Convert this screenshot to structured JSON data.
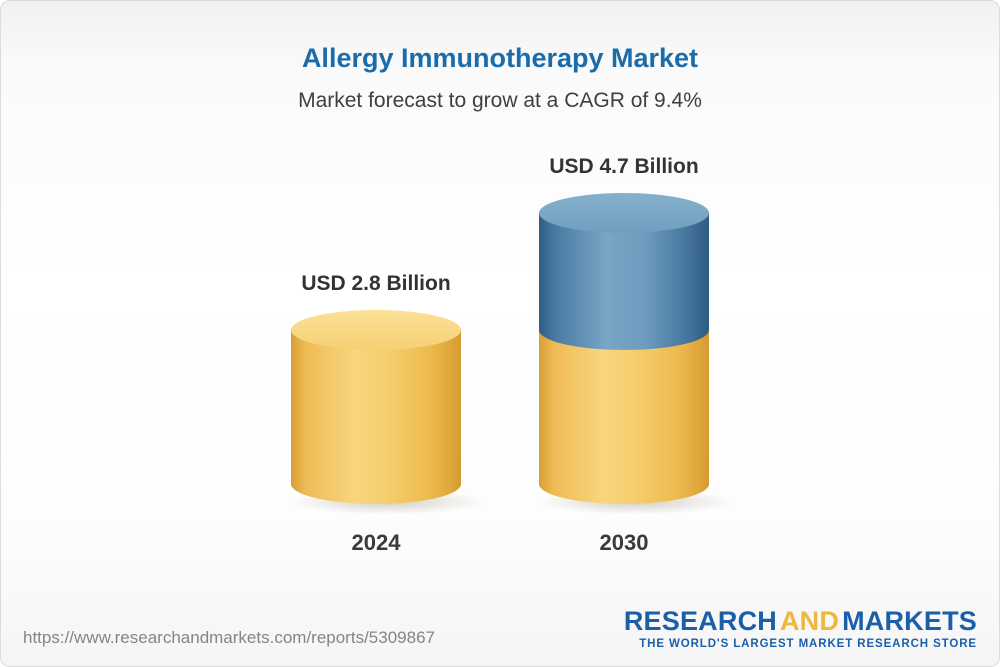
{
  "chart_data": {
    "type": "bar",
    "title": "Allergy Immunotherapy Market",
    "subtitle": "Market forecast to grow at a CAGR of 9.4%",
    "categories": [
      "2024",
      "2030"
    ],
    "values": [
      2.8,
      4.7
    ],
    "value_labels": [
      "USD 2.8 Billion",
      "USD 4.7 Billion"
    ],
    "unit": "USD Billion",
    "cagr_percent": 9.4,
    "legend": "none",
    "axes": "hidden",
    "colors": {
      "base_segment": "#F2C75C",
      "growth_segment": "#4E81A8",
      "title": "#1B6CAB"
    }
  },
  "footer": {
    "url": "https://www.researchandmarkets.com/reports/5309867",
    "logo": {
      "word1": "RESEARCH",
      "word2": "AND",
      "word3": "MARKETS",
      "tagline": "THE WORLD'S LARGEST MARKET RESEARCH STORE"
    }
  }
}
